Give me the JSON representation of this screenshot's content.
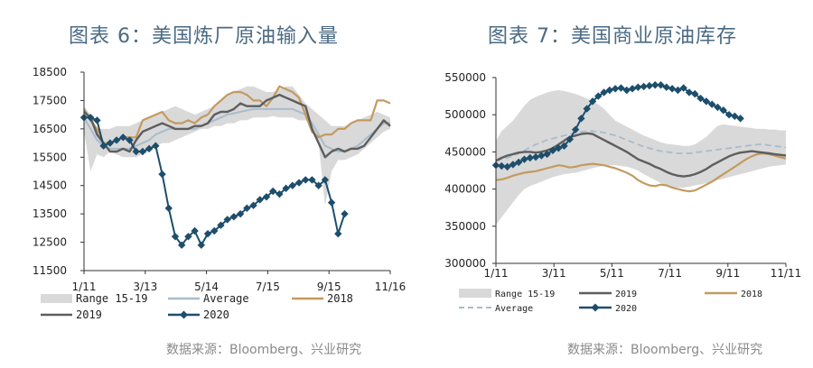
{
  "charts": [
    {
      "title": "图表 6：美国炼厂原油输入量",
      "source": "数据来源：Bloomberg、兴业研究",
      "chart_data": {
        "type": "line",
        "x_ticks": [
          "1/11",
          "3/13",
          "5/14",
          "7/15",
          "9/15",
          "11/16"
        ],
        "y_ticks": [
          "11500",
          "12500",
          "13500",
          "14500",
          "15500",
          "16500",
          "17500",
          "18500"
        ],
        "ylim": [
          11500,
          18500
        ],
        "legend": [
          "Range 15-19",
          "Average",
          "2018",
          "2019",
          "2020"
        ],
        "colors": {
          "range": "#d9d9d9",
          "average": "#a7bccc",
          "y2018": "#c49a5f",
          "y2019": "#5e5e5e",
          "y2020": "#1d4e6c"
        },
        "range_low": [
          16400,
          15000,
          15600,
          15500,
          15700,
          15600,
          15500,
          15500,
          15500,
          15600,
          15700,
          15900,
          16000,
          16000,
          16100,
          16200,
          16300,
          16400,
          16500,
          16500,
          16600,
          16600,
          16700,
          16700,
          16800,
          16800,
          16900,
          16900,
          16900,
          16950,
          16900,
          16900,
          16900,
          16800,
          16800,
          16600,
          16000,
          13800,
          15000,
          15400,
          15400,
          15500,
          15600,
          15800,
          16000,
          16200,
          16400,
          16500
        ],
        "range_high": [
          17300,
          17000,
          16500,
          16500,
          16500,
          16600,
          16600,
          16600,
          16700,
          16800,
          16900,
          17000,
          17100,
          17200,
          17300,
          17200,
          17100,
          17000,
          17100,
          17200,
          17300,
          17500,
          17700,
          17800,
          17900,
          18000,
          18000,
          17900,
          17800,
          17800,
          17900,
          18000,
          18000,
          17700,
          17400,
          17200,
          17000,
          16800,
          16600,
          16600,
          16600,
          16700,
          16800,
          16900,
          17000,
          17100,
          17000,
          16900
        ],
        "average": [
          16900,
          16500,
          16100,
          15900,
          15800,
          15800,
          15800,
          15800,
          15900,
          16000,
          16100,
          16300,
          16400,
          16500,
          16500,
          16500,
          16500,
          16500,
          16600,
          16700,
          16800,
          16900,
          17000,
          17050,
          17100,
          17150,
          17200,
          17200,
          17200,
          17200,
          17200,
          17200,
          17200,
          17100,
          17000,
          16700,
          16300,
          15900,
          15800,
          15700,
          15700,
          15800,
          15900,
          16100,
          16300,
          16500,
          16700,
          16700
        ],
        "y2018": [
          17200,
          16800,
          16500,
          16000,
          16000,
          16100,
          16200,
          16200,
          16200,
          16800,
          16900,
          17000,
          17100,
          16800,
          16700,
          16700,
          16800,
          16700,
          16900,
          17000,
          17300,
          17500,
          17700,
          17800,
          17800,
          17700,
          17500,
          17500,
          17300,
          17600,
          18000,
          17900,
          17800,
          17600,
          17000,
          16400,
          16200,
          16300,
          16300,
          16500,
          16500,
          16700,
          16800,
          16800,
          16800,
          17500,
          17500,
          17400
        ],
        "y2019": [
          17100,
          16900,
          16300,
          16000,
          15700,
          15700,
          15800,
          15700,
          16100,
          16400,
          16500,
          16600,
          16700,
          16600,
          16500,
          16500,
          16500,
          16600,
          16600,
          16700,
          17000,
          17100,
          17100,
          17200,
          17400,
          17300,
          17300,
          17300,
          17500,
          17600,
          17700,
          17600,
          17500,
          17400,
          17300,
          16500,
          16000,
          15500,
          15700,
          15800,
          15700,
          15800,
          15800,
          15900,
          16200,
          16500,
          16800,
          16600
        ],
        "y2020": [
          16900,
          16900,
          16800,
          15900,
          16000,
          16100,
          16200,
          16100,
          15700,
          15700,
          15800,
          15900,
          14900,
          13700,
          12700,
          12400,
          12700,
          12900,
          12400,
          12800,
          12900,
          13100,
          13300,
          13400,
          13500,
          13700,
          13800,
          14000,
          14100,
          14300,
          14200,
          14400,
          14500,
          14600,
          14700,
          14700,
          14500,
          14700,
          13900,
          12800,
          13500
        ]
      }
    },
    {
      "title": "图表 7：美国商业原油库存",
      "source": "数据来源：Bloomberg、兴业研究",
      "chart_data": {
        "type": "line",
        "x_ticks": [
          "1/11",
          "3/11",
          "5/11",
          "7/11",
          "9/11",
          "11/11"
        ],
        "y_ticks": [
          "300000",
          "350000",
          "400000",
          "450000",
          "500000",
          "550000"
        ],
        "ylim": [
          300000,
          550000
        ],
        "legend": [
          "Range 15-19",
          "2019",
          "2018",
          "Average",
          "2020"
        ],
        "colors": {
          "range": "#d9d9d9",
          "average": "#a7bccc",
          "y2018": "#c49a5f",
          "y2019": "#5e5e5e",
          "y2020": "#1d4e6c"
        },
        "range_low": [
          352000,
          362000,
          372000,
          382000,
          392000,
          400000,
          404000,
          407000,
          410000,
          413000,
          416000,
          418000,
          420000,
          421000,
          422000,
          424000,
          426000,
          428000,
          430000,
          431000,
          432000,
          432000,
          431000,
          430000,
          428000,
          425000,
          420000,
          416000,
          412000,
          408000,
          405000,
          403000,
          402000,
          402000,
          403000,
          405000,
          406000,
          408000,
          410000,
          412000,
          414000,
          416000,
          418000,
          420000,
          422000,
          424000,
          426000,
          428000,
          430000,
          431000,
          432000,
          433000
        ],
        "range_high": [
          465000,
          478000,
          485000,
          492000,
          502000,
          512000,
          520000,
          524000,
          527000,
          530000,
          532000,
          533000,
          532000,
          530000,
          528000,
          525000,
          522000,
          518000,
          514000,
          508000,
          500000,
          492000,
          488000,
          484000,
          480000,
          476000,
          472000,
          469000,
          466000,
          463000,
          461000,
          460000,
          459000,
          458000,
          458000,
          460000,
          465000,
          470000,
          478000,
          485000,
          487000,
          486000,
          485000,
          484000,
          483000,
          482000,
          481000,
          481000,
          480000,
          480000,
          479000,
          479000
        ],
        "average": [
          438000,
          440000,
          442000,
          445000,
          448000,
          452000,
          456000,
          460000,
          463000,
          466000,
          468000,
          470000,
          472000,
          474000,
          476000,
          477000,
          478000,
          478000,
          477000,
          476000,
          474000,
          472000,
          469000,
          466000,
          463000,
          460000,
          457000,
          455000,
          453000,
          451000,
          450000,
          449000,
          448000,
          448000,
          448000,
          449000,
          450000,
          451000,
          452000,
          453000,
          454000,
          455000,
          456000,
          457000,
          458000,
          459000,
          460000,
          460000,
          459000,
          458000,
          457000,
          456000
        ],
        "y2018": [
          412000,
          413000,
          415000,
          418000,
          420000,
          422000,
          423000,
          424000,
          426000,
          428000,
          430000,
          432000,
          431000,
          429000,
          430000,
          432000,
          433000,
          434000,
          433000,
          432000,
          430000,
          428000,
          425000,
          422000,
          418000,
          412000,
          408000,
          405000,
          404000,
          406000,
          405000,
          402000,
          400000,
          398000,
          397000,
          398000,
          402000,
          406000,
          410000,
          415000,
          420000,
          425000,
          430000,
          435000,
          440000,
          444000,
          447000,
          448000,
          447000,
          445000,
          443000,
          441000
        ],
        "y2019": [
          438000,
          442000,
          445000,
          447000,
          449000,
          450000,
          450000,
          449000,
          450000,
          452000,
          455000,
          460000,
          465000,
          470000,
          472000,
          474000,
          475000,
          474000,
          470000,
          466000,
          462000,
          458000,
          454000,
          450000,
          445000,
          440000,
          437000,
          434000,
          430000,
          427000,
          423000,
          420000,
          418000,
          417000,
          418000,
          420000,
          423000,
          427000,
          432000,
          436000,
          440000,
          444000,
          447000,
          449000,
          450000,
          451000,
          450000,
          449000,
          448000,
          447000,
          446000,
          445000
        ],
        "y2020": [
          432000,
          431000,
          430000,
          433000,
          436000,
          440000,
          442000,
          443000,
          445000,
          447000,
          452000,
          455000,
          458000,
          467000,
          480000,
          495000,
          508000,
          518000,
          525000,
          530000,
          533000,
          535000,
          536000,
          533000,
          535000,
          537000,
          538000,
          539000,
          540000,
          540000,
          537000,
          535000,
          533000,
          536000,
          530000,
          528000,
          522000,
          518000,
          514000,
          510000,
          506000,
          500000,
          498000,
          495000
        ]
      }
    }
  ]
}
